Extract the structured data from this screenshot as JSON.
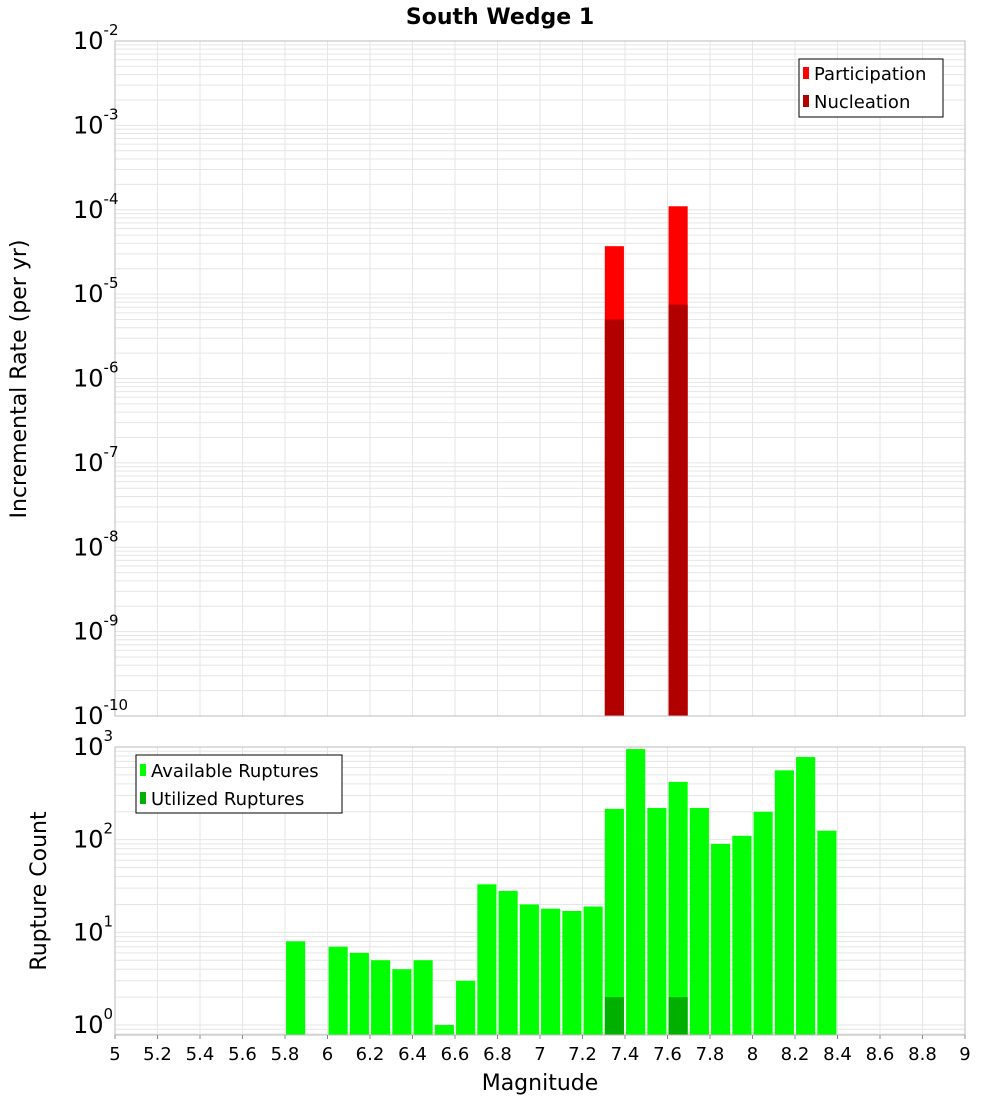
{
  "title": "South Wedge 1",
  "colors": {
    "participation": "#ff0000",
    "nucleation": "#b00000",
    "available": "#00ff00",
    "utilized": "#00b000",
    "grid": "#e6e6e6",
    "frame": "#bbbbbb"
  },
  "chart_data": [
    {
      "type": "bar",
      "name": "incremental-rate",
      "yscale": "log",
      "ylabel": "Incremental Rate (per yr)",
      "xlabel": "",
      "xlim": [
        5,
        9
      ],
      "ylim_exp": [
        -10,
        -2
      ],
      "ytick_exps": [
        "-10",
        "-9",
        "-8",
        "-7",
        "-6",
        "-5",
        "-4",
        "-3",
        "-2"
      ],
      "bar_width": 0.09,
      "legend": {
        "position": "top-right",
        "entries": [
          "Participation",
          "Nucleation"
        ]
      },
      "series": [
        {
          "name": "Participation",
          "color_key": "participation",
          "points": [
            {
              "x": 7.35,
              "y": 3.7e-05
            },
            {
              "x": 7.65,
              "y": 0.00011
            }
          ]
        },
        {
          "name": "Nucleation",
          "color_key": "nucleation",
          "points": [
            {
              "x": 7.35,
              "y": 5e-06
            },
            {
              "x": 7.65,
              "y": 7.5e-06
            }
          ]
        }
      ]
    },
    {
      "type": "bar",
      "name": "rupture-count",
      "yscale": "log",
      "ylabel": "Rupture Count",
      "xlabel": "Magnitude",
      "xlim": [
        5,
        9
      ],
      "ylim": [
        0.78,
        1000
      ],
      "ytick_exps": [
        "0",
        "1",
        "2",
        "3"
      ],
      "xticks": [
        "5",
        "5.2",
        "5.4",
        "5.6",
        "5.8",
        "6",
        "6.2",
        "6.4",
        "6.6",
        "6.8",
        "7",
        "7.2",
        "7.4",
        "7.6",
        "7.8",
        "8",
        "8.2",
        "8.4",
        "8.6",
        "8.8",
        "9"
      ],
      "bar_width": 0.09,
      "legend": {
        "position": "top-left",
        "entries": [
          "Available Ruptures",
          "Utilized Ruptures"
        ]
      },
      "series": [
        {
          "name": "Available Ruptures",
          "color_key": "available",
          "points": [
            {
              "x": 5.85,
              "y": 8
            },
            {
              "x": 6.05,
              "y": 7
            },
            {
              "x": 6.15,
              "y": 6
            },
            {
              "x": 6.25,
              "y": 5
            },
            {
              "x": 6.35,
              "y": 4
            },
            {
              "x": 6.45,
              "y": 5
            },
            {
              "x": 6.55,
              "y": 1
            },
            {
              "x": 6.65,
              "y": 3
            },
            {
              "x": 6.75,
              "y": 33
            },
            {
              "x": 6.85,
              "y": 28
            },
            {
              "x": 6.95,
              "y": 20
            },
            {
              "x": 7.05,
              "y": 18
            },
            {
              "x": 7.15,
              "y": 17
            },
            {
              "x": 7.25,
              "y": 19
            },
            {
              "x": 7.35,
              "y": 215
            },
            {
              "x": 7.45,
              "y": 950
            },
            {
              "x": 7.55,
              "y": 220
            },
            {
              "x": 7.65,
              "y": 420
            },
            {
              "x": 7.75,
              "y": 220
            },
            {
              "x": 7.85,
              "y": 90
            },
            {
              "x": 7.95,
              "y": 110
            },
            {
              "x": 8.05,
              "y": 200
            },
            {
              "x": 8.15,
              "y": 560
            },
            {
              "x": 8.25,
              "y": 780
            },
            {
              "x": 8.35,
              "y": 125
            }
          ]
        },
        {
          "name": "Utilized Ruptures",
          "color_key": "utilized",
          "points": [
            {
              "x": 7.35,
              "y": 2
            },
            {
              "x": 7.65,
              "y": 2
            }
          ]
        }
      ]
    }
  ]
}
